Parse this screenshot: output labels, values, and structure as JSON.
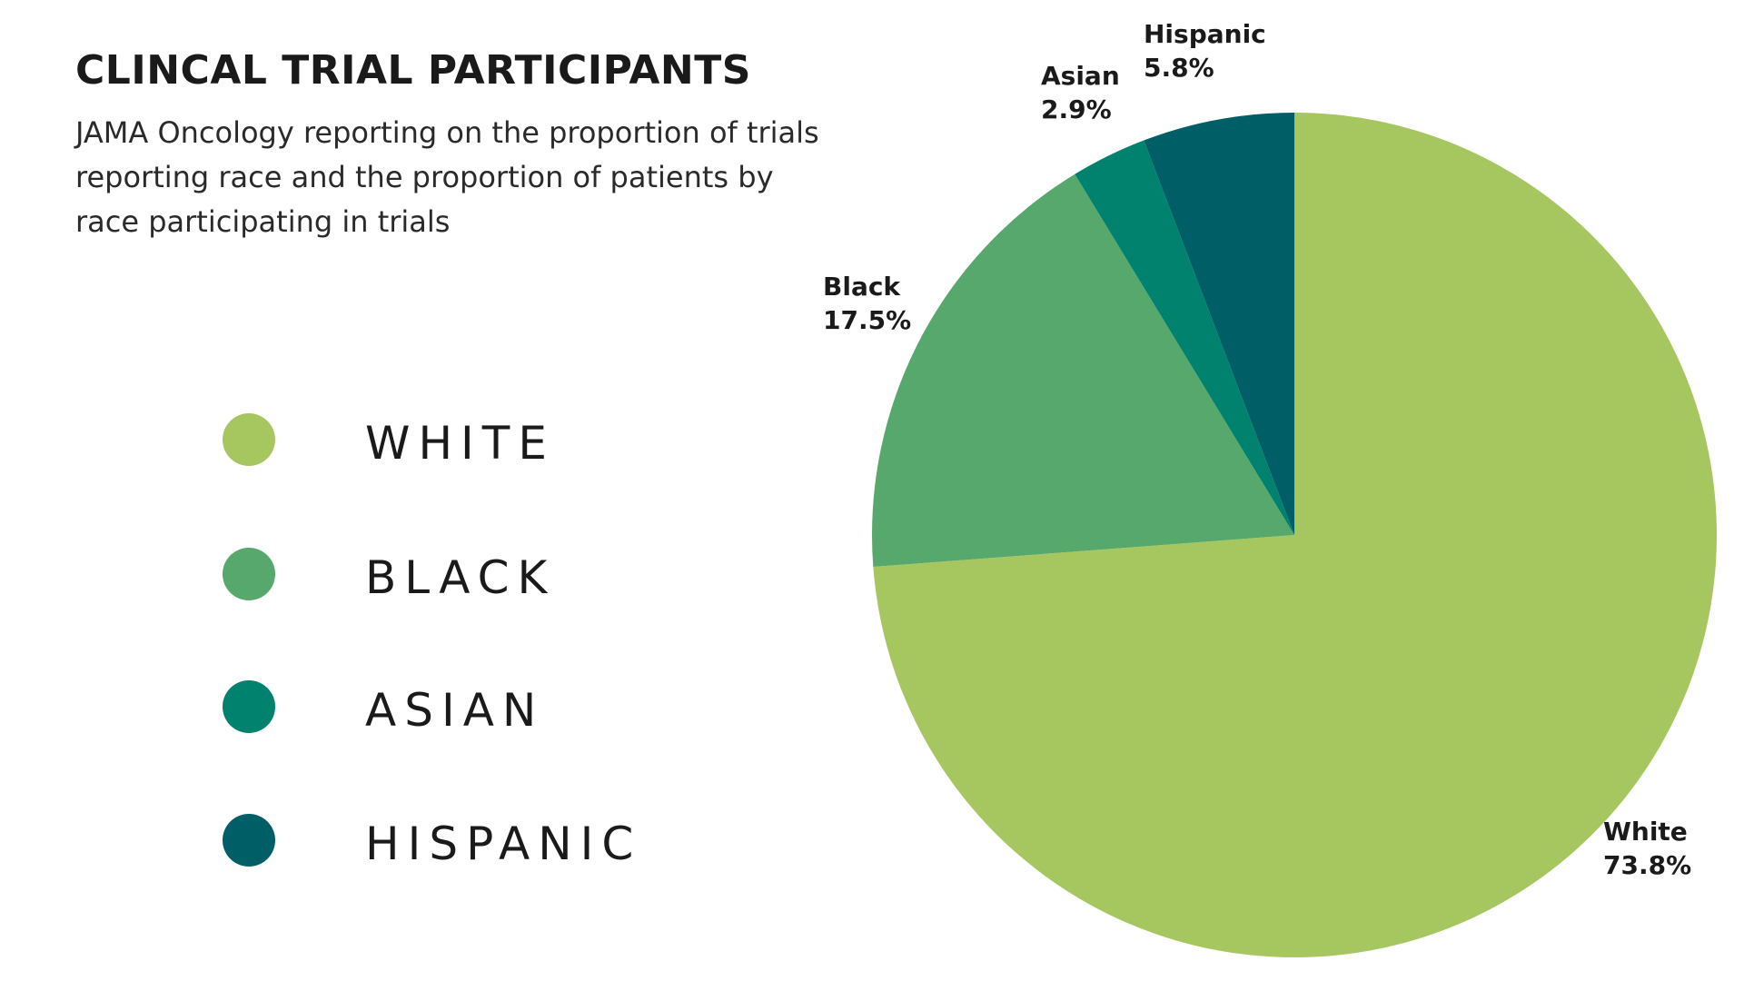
{
  "title": "CLINCAL TRIAL PARTICIPANTS",
  "subtitle": "JAMA Oncology reporting on the proportion of trials reporting race and the proportion of patients by race participating in trials",
  "legend": [
    {
      "label": "WHITE",
      "color": "#a6c760"
    },
    {
      "label": "BLACK",
      "color": "#56a86c"
    },
    {
      "label": "ASIAN",
      "color": "#00826e"
    },
    {
      "label": "HISPANIC",
      "color": "#005e67"
    }
  ],
  "chart_data": {
    "type": "pie",
    "title": "CLINCAL TRIAL PARTICIPANTS",
    "subtitle": "JAMA Oncology reporting on the proportion of trials reporting race and the proportion of patients by race participating in trials",
    "categories": [
      "White",
      "Black",
      "Asian",
      "Hispanic"
    ],
    "values": [
      73.8,
      17.5,
      2.9,
      5.8
    ],
    "value_labels": [
      "73.8%",
      "17.5%",
      "2.9%",
      "5.8%"
    ],
    "colors": [
      "#a6c760",
      "#56a86c",
      "#00826e",
      "#005e67"
    ],
    "legend_position": "left"
  }
}
